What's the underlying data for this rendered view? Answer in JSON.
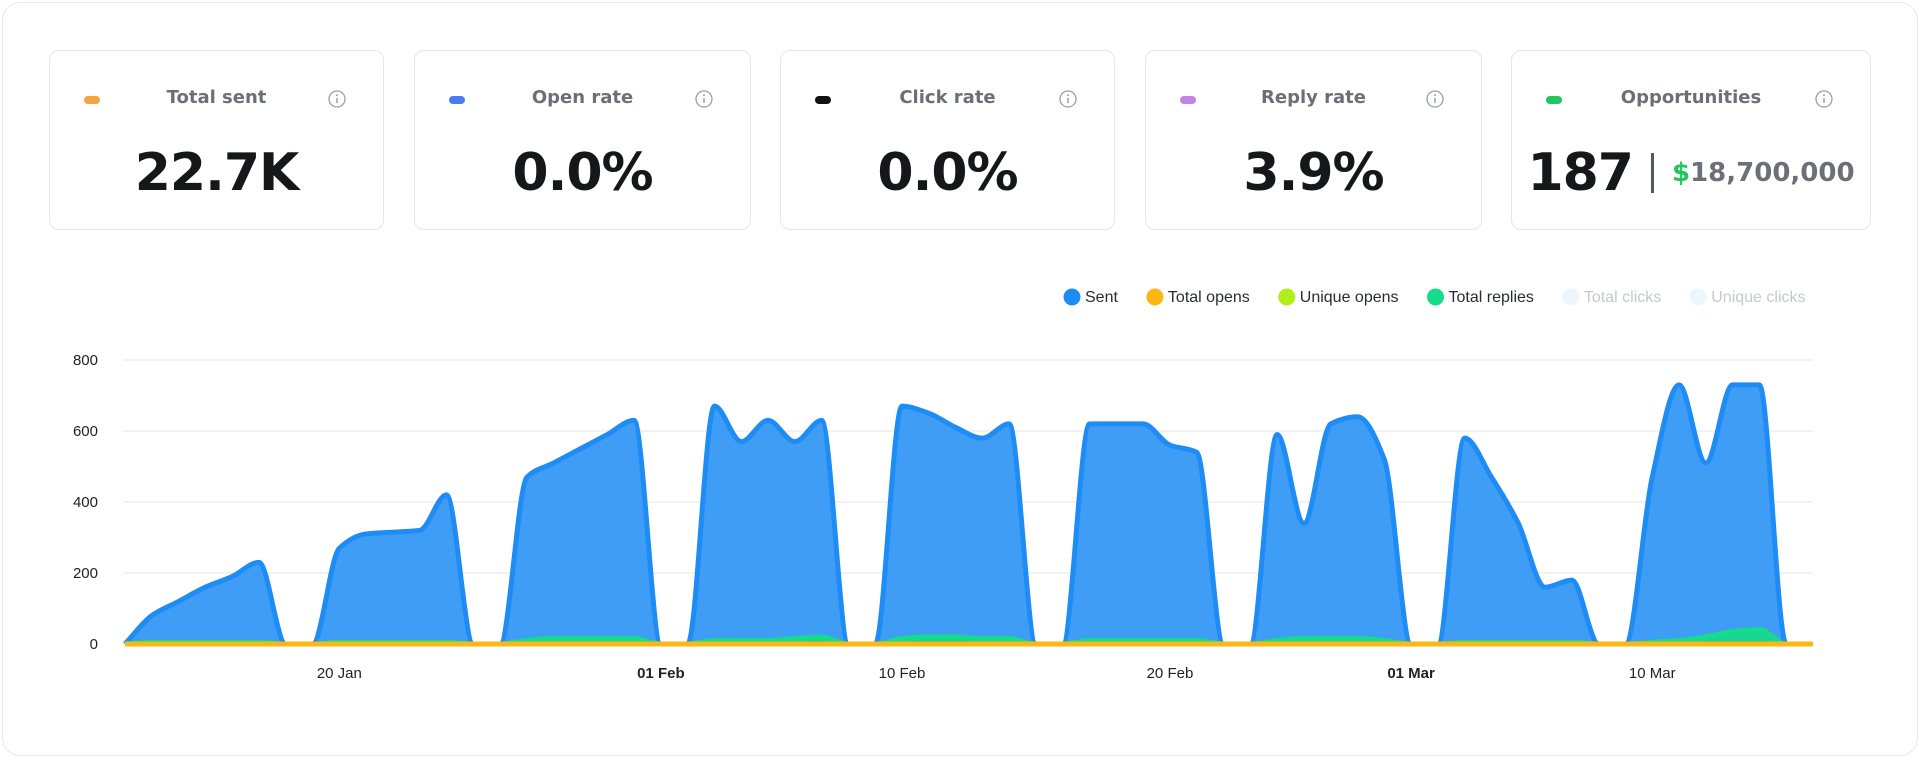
{
  "cards": [
    {
      "title": "Total sent",
      "value": "22.7K",
      "color": "#f4a340"
    },
    {
      "title": "Open rate",
      "value": "0.0%",
      "color": "#4a7cf0"
    },
    {
      "title": "Click rate",
      "value": "0.0%",
      "color": "#111111"
    },
    {
      "title": "Reply rate",
      "value": "3.9%",
      "color": "#c084e8"
    },
    {
      "title": "Opportunities",
      "value": "187",
      "currency": "$",
      "amount": "18,700,000",
      "color": "#22c55e"
    }
  ],
  "chart_data": {
    "type": "area",
    "categories": [
      null,
      null,
      null,
      null,
      null,
      null,
      null,
      null,
      "20 Jan",
      null,
      null,
      null,
      null,
      null,
      null,
      null,
      null,
      null,
      null,
      null,
      "01 Feb",
      null,
      null,
      null,
      null,
      null,
      null,
      null,
      null,
      "10 Feb",
      null,
      null,
      null,
      null,
      null,
      null,
      null,
      null,
      null,
      "20 Feb",
      null,
      null,
      null,
      null,
      null,
      null,
      null,
      null,
      "01 Mar",
      null,
      null,
      null,
      null,
      null,
      null,
      null,
      null,
      "10 Mar",
      null,
      null,
      null,
      null,
      null,
      null
    ],
    "ylim": [
      0,
      800
    ],
    "yticks": [
      0,
      200,
      400,
      600,
      800
    ],
    "grid": true,
    "series": [
      {
        "name": "Sent",
        "color": "#1e8cf5",
        "area": true,
        "hidden": false,
        "values": [
          0,
          80,
          120,
          160,
          190,
          230,
          0,
          0,
          270,
          310,
          315,
          320,
          420,
          0,
          0,
          470,
          510,
          550,
          590,
          630,
          0,
          0,
          670,
          570,
          630,
          570,
          630,
          0,
          0,
          670,
          650,
          610,
          580,
          620,
          0,
          0,
          620,
          620,
          620,
          560,
          540,
          0,
          0,
          590,
          340,
          620,
          640,
          520,
          0,
          0,
          580,
          470,
          340,
          160,
          180,
          0,
          0,
          470,
          730,
          510,
          730,
          730,
          0,
          0
        ]
      },
      {
        "name": "Total opens",
        "color": "#fbb813",
        "area": false,
        "hidden": false,
        "values": [
          0,
          0,
          0,
          0,
          0,
          0,
          0,
          0,
          0,
          0,
          0,
          0,
          0,
          0,
          0,
          0,
          0,
          0,
          0,
          0,
          0,
          0,
          0,
          0,
          0,
          0,
          0,
          0,
          0,
          0,
          0,
          0,
          0,
          0,
          0,
          0,
          0,
          0,
          0,
          0,
          0,
          0,
          0,
          0,
          0,
          0,
          0,
          0,
          0,
          0,
          0,
          0,
          0,
          0,
          0,
          0,
          0,
          0,
          0,
          0,
          0,
          0,
          0,
          0
        ]
      },
      {
        "name": "Unique opens",
        "color": "#b2ee1c",
        "area": false,
        "hidden": false,
        "values": [
          0,
          0,
          0,
          0,
          0,
          0,
          0,
          0,
          0,
          0,
          0,
          0,
          0,
          0,
          0,
          0,
          0,
          0,
          0,
          0,
          0,
          0,
          0,
          0,
          0,
          0,
          0,
          0,
          0,
          0,
          0,
          0,
          0,
          0,
          0,
          0,
          0,
          0,
          0,
          0,
          0,
          0,
          0,
          0,
          0,
          0,
          0,
          0,
          0,
          0,
          0,
          0,
          0,
          0,
          0,
          0,
          0,
          0,
          0,
          0,
          0,
          0,
          0,
          0
        ]
      },
      {
        "name": "Total replies",
        "color": "#14dc8a",
        "area": true,
        "hidden": false,
        "values": [
          0,
          5,
          5,
          5,
          5,
          5,
          0,
          0,
          5,
          5,
          5,
          5,
          5,
          0,
          0,
          10,
          15,
          15,
          15,
          15,
          0,
          0,
          10,
          10,
          10,
          15,
          20,
          0,
          0,
          15,
          20,
          20,
          15,
          15,
          0,
          0,
          10,
          10,
          10,
          10,
          10,
          0,
          0,
          10,
          15,
          15,
          15,
          10,
          0,
          0,
          5,
          5,
          5,
          5,
          5,
          0,
          0,
          5,
          10,
          20,
          35,
          40,
          0,
          0
        ]
      },
      {
        "name": "Total clicks",
        "color": "#eef5fb",
        "area": false,
        "hidden": true,
        "values": [
          0,
          0,
          0,
          0,
          0,
          0,
          0,
          0,
          0,
          0,
          0,
          0,
          0,
          0,
          0,
          0,
          0,
          0,
          0,
          0,
          0,
          0,
          0,
          0,
          0,
          0,
          0,
          0,
          0,
          0,
          0,
          0,
          0,
          0,
          0,
          0,
          0,
          0,
          0,
          0,
          0,
          0,
          0,
          0,
          0,
          0,
          0,
          0,
          0,
          0,
          0,
          0,
          0,
          0,
          0,
          0,
          0,
          0,
          0,
          0,
          0,
          0,
          0,
          0
        ]
      },
      {
        "name": "Unique clicks",
        "color": "#e8f8fb",
        "area": false,
        "hidden": true,
        "values": [
          0,
          0,
          0,
          0,
          0,
          0,
          0,
          0,
          0,
          0,
          0,
          0,
          0,
          0,
          0,
          0,
          0,
          0,
          0,
          0,
          0,
          0,
          0,
          0,
          0,
          0,
          0,
          0,
          0,
          0,
          0,
          0,
          0,
          0,
          0,
          0,
          0,
          0,
          0,
          0,
          0,
          0,
          0,
          0,
          0,
          0,
          0,
          0,
          0,
          0,
          0,
          0,
          0,
          0,
          0,
          0,
          0,
          0,
          0,
          0,
          0,
          0,
          0,
          0
        ]
      }
    ]
  }
}
